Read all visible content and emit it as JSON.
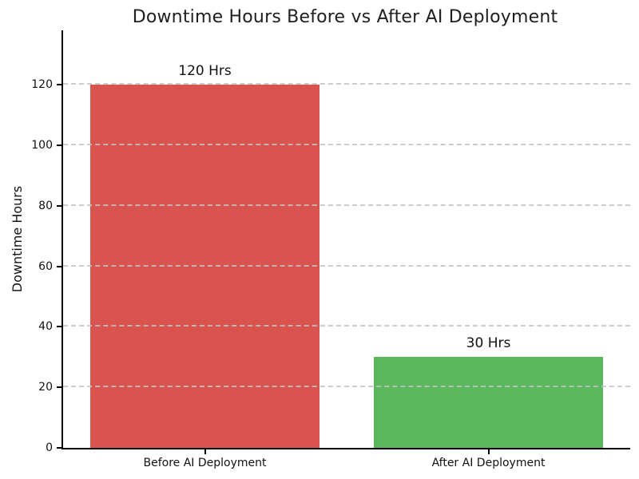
{
  "chart_data": {
    "type": "bar",
    "title": "Downtime Hours Before vs After AI Deployment",
    "xlabel": "",
    "ylabel": "Downtime Hours",
    "categories": [
      "Before AI Deployment",
      "After AI Deployment"
    ],
    "values": [
      120,
      30
    ],
    "bar_labels": [
      "120 Hrs",
      "30 Hrs"
    ],
    "bar_colors": [
      "#d9534f",
      "#5cb85c"
    ],
    "yticks": [
      0,
      20,
      40,
      60,
      80,
      100,
      120
    ],
    "ylim": [
      0,
      138
    ],
    "bar_width_fraction": 0.404,
    "grid": "horizontal dashed gridlines drawn above bars",
    "grid_color": "#c3c3c3",
    "legend": "none",
    "spines": "left and bottom only, black"
  }
}
